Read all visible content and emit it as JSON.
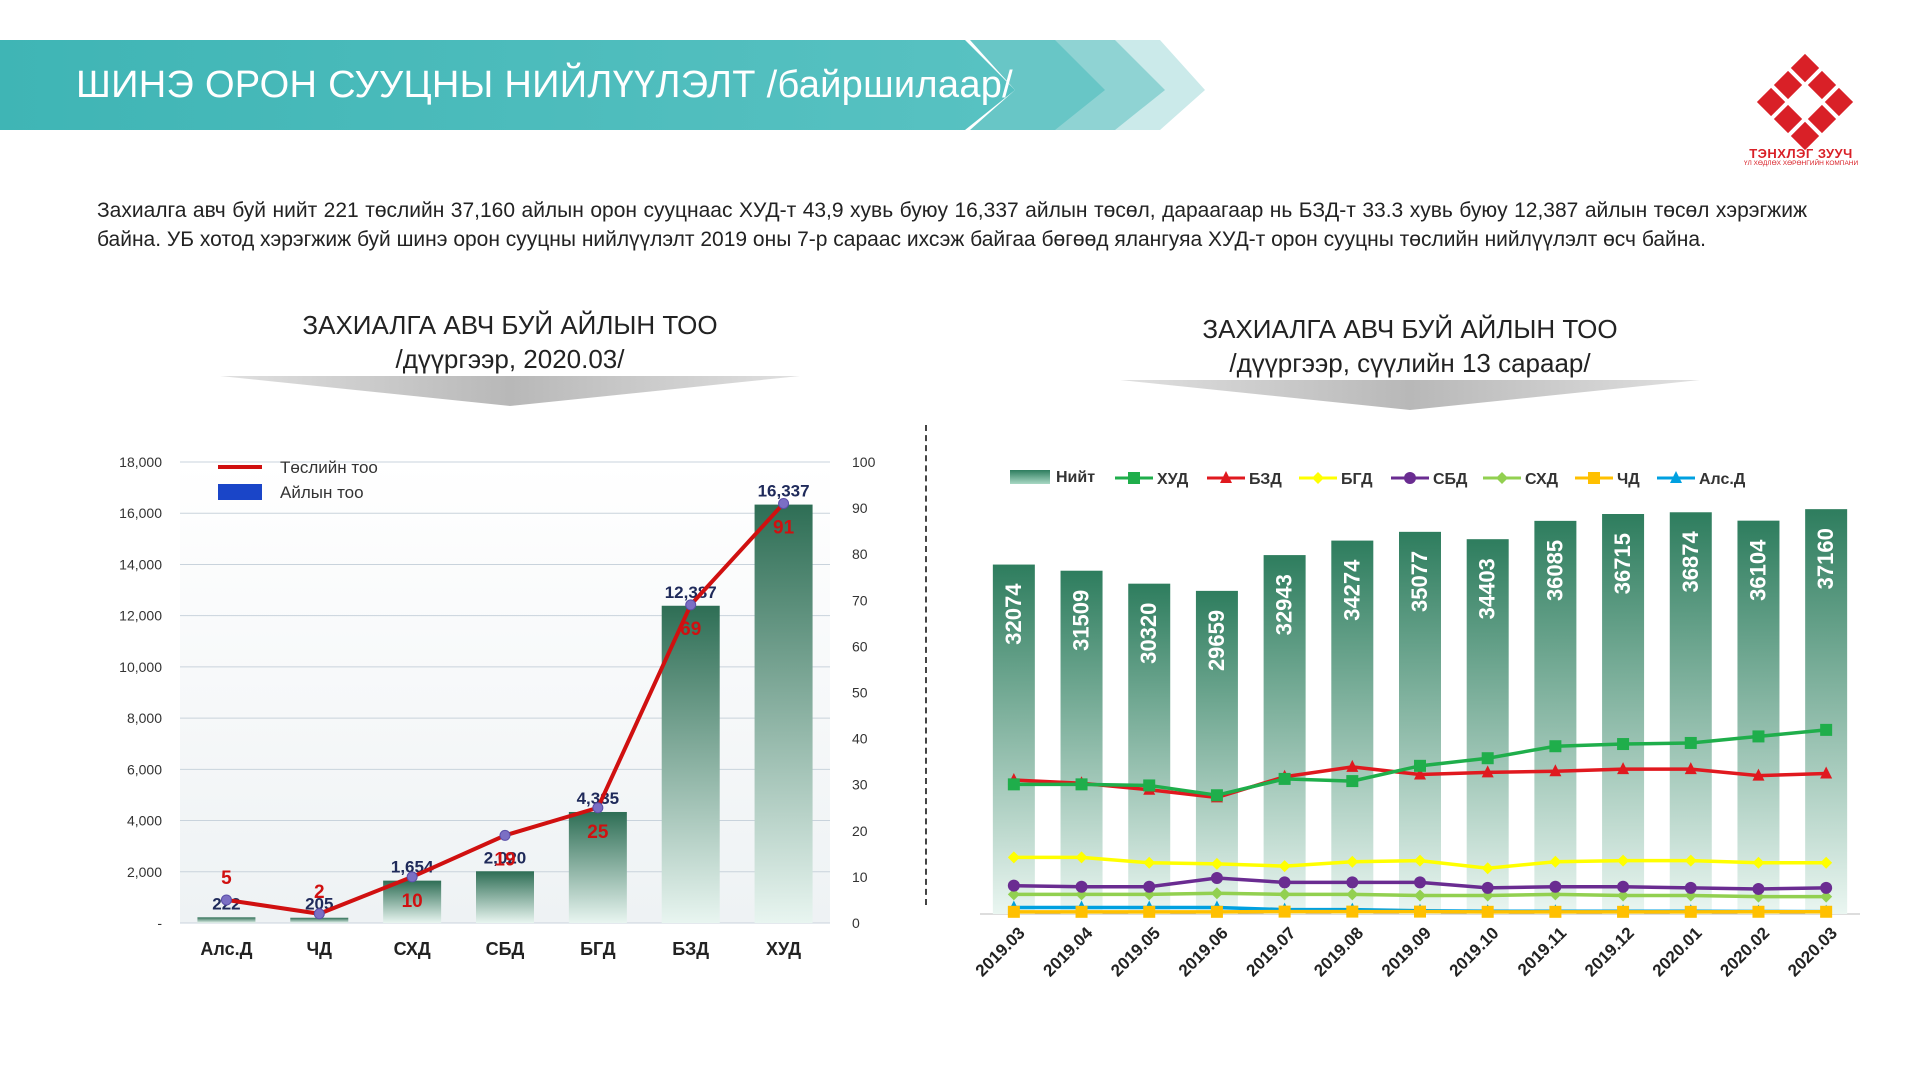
{
  "header": {
    "title": "ШИНЭ ОРОН СУУЦНЫ НИЙЛҮҮЛЭЛТ /байршилаар/",
    "logo_name": "ТЭНХЛЭГ ЗУУЧ",
    "logo_sub": "ҮЛ ХӨДЛӨХ ХӨРӨНГИЙН КОМПАНИ",
    "accent_color": "#3fb5b5",
    "logo_color": "#d92027"
  },
  "intro": "Захиалга авч буй нийт 221 төслийн 37,160 айлын орон сууцнаас ХУД-т 43,9 хувь буюу 16,337 айлын төсөл, дараагаар нь БЗД-т 33.3 хувь буюу 12,387 айлын төсөл  хэрэгжиж байна. УБ хотод хэрэгжиж буй шинэ орон сууцны нийлүүлэлт 2019 оны 7-р сараас ихсэж байгаа бөгөөд ялангуяа ХУД-т орон сууцны төслийн нийлүүлэлт өсч байна.",
  "left_title": {
    "line1": "ЗАХИАЛГА АВЧ БУЙ АЙЛЫН ТОО",
    "line2": "/дүүргээр, 2020.03/"
  },
  "right_title": {
    "line1": "ЗАХИАЛГА АВЧ БУЙ АЙЛЫН ТОО",
    "line2": "/дүүргээр, сүүлийн 13 сараар/"
  },
  "chart_data": [
    {
      "type": "bar",
      "categories": [
        "Алс.Д",
        "ЧД",
        "СХД",
        "СБД",
        "БГД",
        "БЗД",
        "ХУД"
      ],
      "series": [
        {
          "name": "Айлын тоо",
          "type": "bar",
          "axis": "left",
          "values": [
            222,
            205,
            1654,
            2020,
            4335,
            12387,
            16337
          ],
          "labels": [
            "222",
            "205",
            "1,654",
            "2,020",
            "4,335",
            "12,387",
            "16,337"
          ],
          "color": "#2e7d5e"
        },
        {
          "name": "Төслийн тоо",
          "type": "line",
          "axis": "right",
          "values": [
            5,
            2,
            10,
            19,
            25,
            69,
            91
          ],
          "color": "#d01010"
        }
      ],
      "ylim": [
        0,
        18000
      ],
      "yticks": [
        0,
        2000,
        4000,
        6000,
        8000,
        10000,
        12000,
        14000,
        16000,
        18000
      ],
      "ytick_labels": [
        "-",
        "2,000",
        "4,000",
        "6,000",
        "8,000",
        "10,000",
        "12,000",
        "14,000",
        "16,000",
        "18,000"
      ],
      "y2lim": [
        0,
        100
      ],
      "y2ticks": [
        0,
        10,
        20,
        30,
        40,
        50,
        60,
        70,
        80,
        90,
        100
      ],
      "legend": "top-left",
      "grid": true
    },
    {
      "type": "bar",
      "categories": [
        "2019.03",
        "2019.04",
        "2019.05",
        "2019.06",
        "2019.07",
        "2019.08",
        "2019.09",
        "2019.10",
        "2019.11",
        "2019.12",
        "2020.01",
        "2020.02",
        "2020.03"
      ],
      "bar_series": {
        "name": "Нийт",
        "values": [
          32074,
          31509,
          30320,
          29659,
          32943,
          34274,
          35077,
          34403,
          36085,
          36715,
          36874,
          36104,
          37160
        ],
        "color": "#2e7d5e"
      },
      "line_series": [
        {
          "name": "ХУД",
          "color": "#1fae4b",
          "marker": "square",
          "values": [
            11900,
            11900,
            11800,
            10900,
            12400,
            12200,
            13600,
            14300,
            15400,
            15600,
            15700,
            16300,
            16900
          ]
        },
        {
          "name": "БЗД",
          "color": "#e0191f",
          "marker": "triangle",
          "values": [
            12300,
            12000,
            11400,
            10700,
            12600,
            13500,
            12800,
            13000,
            13100,
            13300,
            13300,
            12700,
            12900
          ]
        },
        {
          "name": "БГД",
          "color": "#ffff00",
          "marker": "diamond",
          "values": [
            5200,
            5200,
            4700,
            4600,
            4400,
            4800,
            4900,
            4200,
            4800,
            4900,
            4900,
            4700,
            4700
          ]
        },
        {
          "name": "СБД",
          "color": "#6a2c91",
          "marker": "circle",
          "values": [
            2600,
            2500,
            2500,
            3300,
            2900,
            2900,
            2900,
            2400,
            2500,
            2500,
            2400,
            2300,
            2400
          ]
        },
        {
          "name": "СХД",
          "color": "#92d050",
          "marker": "diamond",
          "values": [
            1800,
            1800,
            1800,
            1900,
            1800,
            1800,
            1700,
            1700,
            1800,
            1700,
            1700,
            1600,
            1600
          ]
        },
        {
          "name": "ЧД",
          "color": "#ffc000",
          "marker": "square",
          "values": [
            200,
            200,
            200,
            200,
            220,
            220,
            220,
            200,
            200,
            200,
            200,
            205,
            205
          ]
        },
        {
          "name": "Алс.Д",
          "color": "#00a0e0",
          "marker": "triangle",
          "values": [
            600,
            600,
            600,
            600,
            400,
            400,
            300,
            250,
            250,
            250,
            250,
            230,
            222
          ]
        }
      ],
      "ylim": [
        0,
        38000
      ],
      "legend": "top",
      "grid": false
    }
  ]
}
